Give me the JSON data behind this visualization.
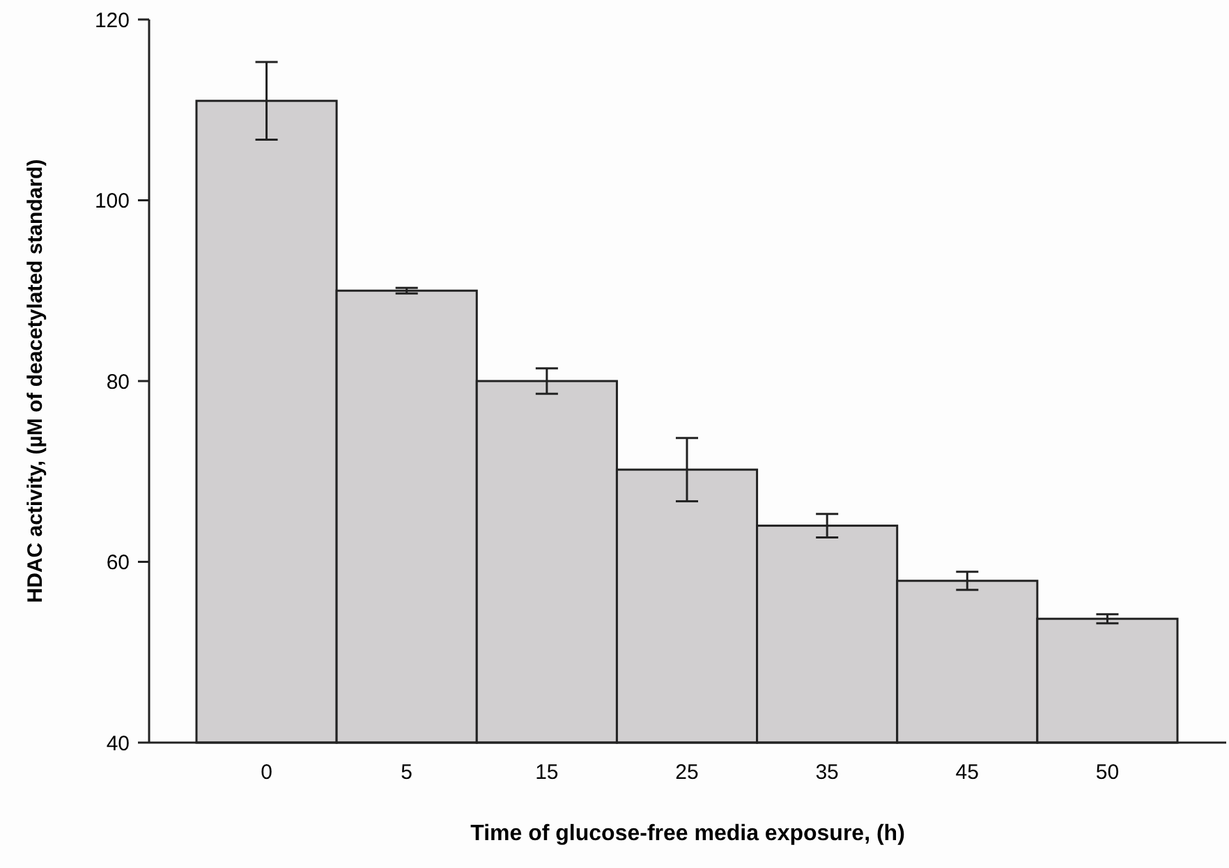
{
  "chart_data": {
    "type": "bar",
    "xlabel": "Time of glucose-free media exposure, (h)",
    "ylabel": "HDAC activity, (µM of deacetylated standard)",
    "categories": [
      "0",
      "5",
      "15",
      "25",
      "35",
      "45",
      "50"
    ],
    "values": [
      111.0,
      90.0,
      80.0,
      70.2,
      64.0,
      57.9,
      53.7
    ],
    "errors": [
      4.3,
      0.3,
      1.4,
      3.5,
      1.3,
      1.0,
      0.5
    ],
    "color": "#d1cfd0",
    "ylim": [
      40,
      120
    ],
    "yticks": [
      40,
      60,
      80,
      100,
      120
    ],
    "grid": false
  }
}
